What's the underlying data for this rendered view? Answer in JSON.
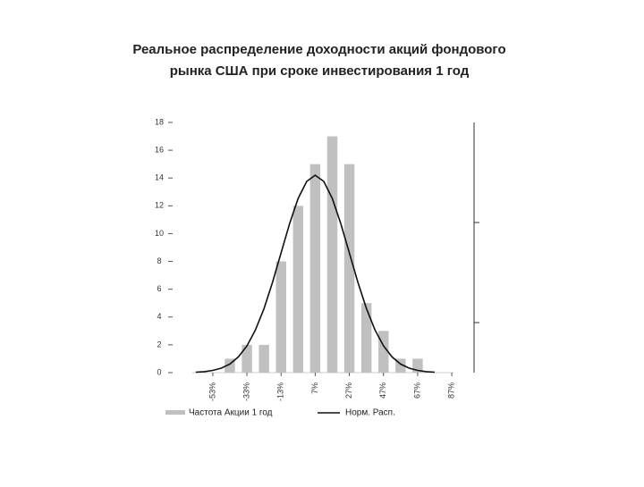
{
  "chart_data": {
    "type": "histogram",
    "title_lines": [
      "Реальное распределение доходности акций фондового",
      "рынка США при сроке инвестирования 1 год"
    ],
    "bins": [
      -48,
      -38,
      -28,
      -18,
      -8,
      2,
      12,
      22,
      32,
      42,
      52,
      62,
      72
    ],
    "values": [
      1,
      2,
      2,
      8,
      12,
      15,
      17,
      15,
      5,
      3,
      1,
      1
    ],
    "bar_name": "Частота Акции 1 год",
    "bar_color": "#c0c0c0",
    "curve": {
      "name": "Норм. Расп.",
      "color": "#111111",
      "x": [
        -63,
        -58,
        -53,
        -48,
        -43,
        -38,
        -33,
        -28,
        -23,
        -18,
        -13,
        -8,
        -3,
        2,
        7,
        12,
        17,
        22,
        27,
        32,
        37,
        42,
        47,
        52,
        57,
        62,
        67,
        72,
        77
      ],
      "values": [
        0.03,
        0.07,
        0.16,
        0.32,
        0.62,
        1.13,
        1.92,
        3.07,
        4.61,
        6.5,
        8.61,
        10.72,
        12.53,
        13.76,
        14.2,
        13.76,
        12.53,
        10.72,
        8.61,
        6.5,
        4.61,
        3.07,
        1.92,
        1.13,
        0.62,
        0.32,
        0.16,
        0.07,
        0.03
      ]
    },
    "xlim": [
      -65,
      88
    ],
    "xticks": [
      {
        "value": -53,
        "label": "-53%"
      },
      {
        "value": -33,
        "label": "-33%"
      },
      {
        "value": -13,
        "label": "-13%"
      },
      {
        "value": 7,
        "label": "7%"
      },
      {
        "value": 27,
        "label": "27%"
      },
      {
        "value": 47,
        "label": "47%"
      },
      {
        "value": 67,
        "label": "67%"
      },
      {
        "value": 87,
        "label": "87%"
      }
    ],
    "ylim": [
      0,
      18
    ],
    "yticks": [
      0,
      2,
      4,
      6,
      8,
      10,
      12,
      14,
      16,
      18
    ]
  }
}
